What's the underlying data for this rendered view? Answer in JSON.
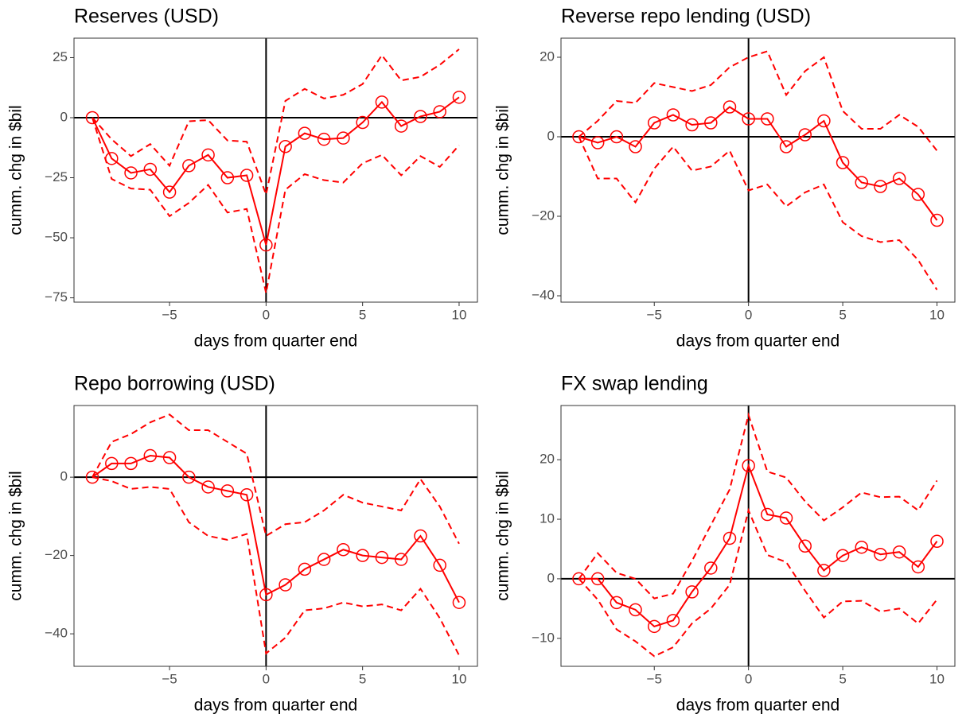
{
  "chart_data": [
    {
      "type": "line",
      "title": "Reserves (USD)",
      "xlabel": "days from quarter end",
      "ylabel": "cumm. chg in $bil",
      "x": [
        -9,
        -8,
        -7,
        -6,
        -5,
        -4,
        -3,
        -2,
        -1,
        0,
        1,
        2,
        3,
        4,
        5,
        6,
        7,
        8,
        9,
        10
      ],
      "series": [
        {
          "color": "#ff0000",
          "dash": false,
          "markers": true,
          "values": [
            0,
            -17,
            -23,
            -21.5,
            -31,
            -20,
            -15.5,
            -25,
            -24,
            -53,
            -12,
            -6.5,
            -9,
            -8.5,
            -2,
            6.5,
            -3.5,
            0.5,
            2.5,
            8.5
          ]
        },
        {
          "color": "#ff0000",
          "dash": true,
          "markers": false,
          "values": [
            0,
            -9,
            -16,
            -11,
            -20,
            -1.5,
            -1,
            -9.5,
            -10,
            -32,
            7,
            12,
            8,
            9.5,
            14,
            26,
            15.5,
            17,
            22,
            28.5
          ]
        },
        {
          "color": "#ff0000",
          "dash": true,
          "markers": false,
          "values": [
            0,
            -25.5,
            -29.5,
            -30,
            -41,
            -35.5,
            -28,
            -39.5,
            -38,
            -73,
            -30,
            -23.5,
            -26,
            -27,
            -19,
            -15.5,
            -24,
            -16,
            -20.5,
            -11.5
          ]
        }
      ],
      "xlim": [
        -9.95,
        10.95
      ],
      "xticks": [
        {
          "value": -5,
          "label": "−5"
        },
        0,
        5,
        10
      ],
      "ylim": [
        -76.8,
        33.1
      ],
      "yticks": [
        {
          "value": -75,
          "label": "−75"
        },
        {
          "value": -50,
          "label": "−50"
        },
        {
          "value": -25,
          "label": "−25"
        },
        0,
        25
      ],
      "ref_lines": true
    },
    {
      "type": "line",
      "title": "Reverse repo lending (USD)",
      "xlabel": "days from quarter end",
      "ylabel": "cumm. chg in $bil",
      "x": [
        -9,
        -8,
        -7,
        -6,
        -5,
        -4,
        -3,
        -2,
        -1,
        0,
        1,
        2,
        3,
        4,
        5,
        6,
        7,
        8,
        9,
        10
      ],
      "series": [
        {
          "color": "#ff0000",
          "dash": false,
          "markers": true,
          "values": [
            0,
            -1.5,
            0,
            -2.5,
            3.5,
            5.5,
            3,
            3.5,
            7.5,
            4.5,
            4.5,
            -2.5,
            0.5,
            4,
            -6.5,
            -11.5,
            -12.5,
            -10.5,
            -14.5,
            -21
          ]
        },
        {
          "color": "#ff0000",
          "dash": true,
          "markers": false,
          "values": [
            0,
            4,
            9,
            8.5,
            13.5,
            12.5,
            11.5,
            13,
            17.5,
            20,
            21.5,
            10.5,
            16.5,
            20,
            6.5,
            2,
            2,
            5.5,
            2.5,
            -3.5
          ]
        },
        {
          "color": "#ff0000",
          "dash": true,
          "markers": false,
          "values": [
            0,
            -10.5,
            -10.5,
            -16.5,
            -8,
            -2.5,
            -8.5,
            -7.5,
            -3.5,
            -13.5,
            -12,
            -17.5,
            -14,
            -12,
            -21.5,
            -25,
            -26.5,
            -26,
            -31,
            -38.5
          ]
        }
      ],
      "xlim": [
        -9.95,
        10.95
      ],
      "xticks": [
        {
          "value": -5,
          "label": "−5"
        },
        0,
        5,
        10
      ],
      "ylim": [
        -41.6,
        24.8
      ],
      "yticks": [
        {
          "value": -40,
          "label": "−40"
        },
        {
          "value": -20,
          "label": "−20"
        },
        0,
        20
      ],
      "ref_lines": true
    },
    {
      "type": "line",
      "title": "Repo borrowing (USD)",
      "xlabel": "days from quarter end",
      "ylabel": "cumm. chg in $bil",
      "x": [
        -9,
        -8,
        -7,
        -6,
        -5,
        -4,
        -3,
        -2,
        -1,
        0,
        1,
        2,
        3,
        4,
        5,
        6,
        7,
        8,
        9,
        10
      ],
      "series": [
        {
          "color": "#ff0000",
          "dash": false,
          "markers": true,
          "values": [
            0,
            3.5,
            3.5,
            5.5,
            5,
            0,
            -2.5,
            -3.5,
            -4.5,
            -30,
            -27.5,
            -23.5,
            -21,
            -18.5,
            -20,
            -20.5,
            -21,
            -15,
            -22.5,
            -32
          ]
        },
        {
          "color": "#ff0000",
          "dash": true,
          "markers": false,
          "values": [
            0,
            9,
            11,
            14,
            16,
            12,
            12,
            9,
            6,
            -15,
            -12,
            -11.5,
            -8.5,
            -4.5,
            -6.5,
            -7.5,
            -8.5,
            -0.5,
            -7.5,
            -17
          ]
        },
        {
          "color": "#ff0000",
          "dash": true,
          "markers": false,
          "values": [
            0,
            -1,
            -3,
            -2.5,
            -3,
            -11.5,
            -15,
            -16,
            -14.5,
            -45,
            -41,
            -34,
            -33.5,
            -32,
            -33,
            -32.5,
            -34,
            -28.5,
            -36,
            -45.5
          ]
        }
      ],
      "xlim": [
        -9.95,
        10.95
      ],
      "xticks": [
        {
          "value": -5,
          "label": "−5"
        },
        0,
        5,
        10
      ],
      "ylim": [
        -48.3,
        18.3
      ],
      "yticks": [
        {
          "value": -40,
          "label": "−40"
        },
        {
          "value": -20,
          "label": "−20"
        },
        0
      ],
      "ref_lines": true
    },
    {
      "type": "line",
      "title": "FX swap lending",
      "xlabel": "days from quarter end",
      "ylabel": "cumm. chg in $bil",
      "x": [
        -9,
        -8,
        -7,
        -6,
        -5,
        -4,
        -3,
        -2,
        -1,
        0,
        1,
        2,
        3,
        4,
        5,
        6,
        7,
        8,
        9,
        10
      ],
      "series": [
        {
          "color": "#ff0000",
          "dash": false,
          "markers": true,
          "values": [
            0,
            0,
            -4,
            -5.2,
            -8,
            -7,
            -2.2,
            1.8,
            6.8,
            19,
            10.8,
            10.2,
            5.5,
            1.4,
            3.9,
            5.3,
            4.1,
            4.5,
            2,
            6.3
          ]
        },
        {
          "color": "#ff0000",
          "dash": true,
          "markers": false,
          "values": [
            0,
            4.3,
            1,
            0,
            -3.3,
            -2.5,
            3,
            9,
            15,
            27.5,
            18,
            17,
            13,
            9.8,
            12,
            14.5,
            13.7,
            13.8,
            11.5,
            16.5
          ]
        },
        {
          "color": "#ff0000",
          "dash": true,
          "markers": false,
          "values": [
            0,
            -3.5,
            -8.5,
            -10.5,
            -13,
            -11.5,
            -7.5,
            -5,
            -1,
            11.5,
            4,
            2.8,
            -2,
            -6.5,
            -3.8,
            -3.7,
            -5.5,
            -5,
            -7.5,
            -3.5
          ]
        }
      ],
      "xlim": [
        -9.95,
        10.95
      ],
      "xticks": [
        {
          "value": -5,
          "label": "−5"
        },
        0,
        5,
        10
      ],
      "ylim": [
        -14.7,
        29.1
      ],
      "yticks": [
        {
          "value": -10,
          "label": "−10"
        },
        0,
        10,
        20
      ],
      "ref_lines": true
    }
  ]
}
